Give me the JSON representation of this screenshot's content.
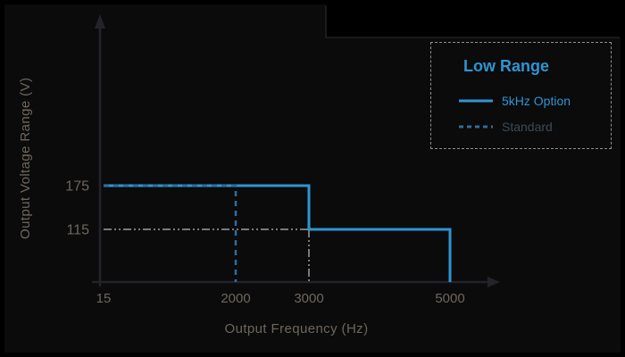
{
  "chart_data": {
    "type": "line",
    "title": "",
    "xlabel": "Output Frequency (Hz)",
    "ylabel": "Output Voltage Range (V)",
    "x_ticks": [
      15,
      2000,
      3000,
      5000
    ],
    "y_ticks": [
      115,
      175
    ],
    "xlim": [
      15,
      5000
    ],
    "ylim": [
      0,
      200
    ],
    "grid": false,
    "legend": {
      "title": "Low Range",
      "position": "top-right",
      "entries": [
        {
          "label": "5kHz Option",
          "style": "solid",
          "color": "#2e95d2"
        },
        {
          "label": "Standard",
          "style": "dashed",
          "color": "#2f6d9e"
        }
      ]
    },
    "series": [
      {
        "name": "5kHz Option",
        "style": "solid",
        "color": "#2e95d2",
        "width": 3,
        "points": [
          [
            15,
            175
          ],
          [
            3000,
            175
          ],
          [
            3000,
            115
          ],
          [
            5000,
            115
          ],
          [
            5000,
            0
          ]
        ]
      },
      {
        "name": "Standard",
        "style": "dashed",
        "color": "#2f6d9e",
        "width": 2.5,
        "points": [
          [
            15,
            175
          ],
          [
            2000,
            175
          ],
          [
            2000,
            0
          ]
        ]
      }
    ],
    "reference_lines": [
      {
        "name": "115V level guide",
        "style": "dash-dot",
        "color": "#9e9e9e",
        "width": 1.5,
        "points": [
          [
            15,
            115
          ],
          [
            3000,
            115
          ]
        ]
      },
      {
        "name": "3000Hz guide",
        "style": "dash-dot",
        "color": "#9e9e9e",
        "width": 1.5,
        "points": [
          [
            3000,
            115
          ],
          [
            3000,
            0
          ]
        ]
      }
    ]
  },
  "colors": {
    "background": "#000000",
    "figure_background": "#0b0b0c",
    "axis": "#232329",
    "axis_text": "#6e665c",
    "accent_blue": "#2e95d2",
    "standard_blue": "#2f6d9e",
    "guide_gray": "#9e9e9e",
    "legend_border": "#8e8e93",
    "standard_label_text": "#3d4a55"
  }
}
